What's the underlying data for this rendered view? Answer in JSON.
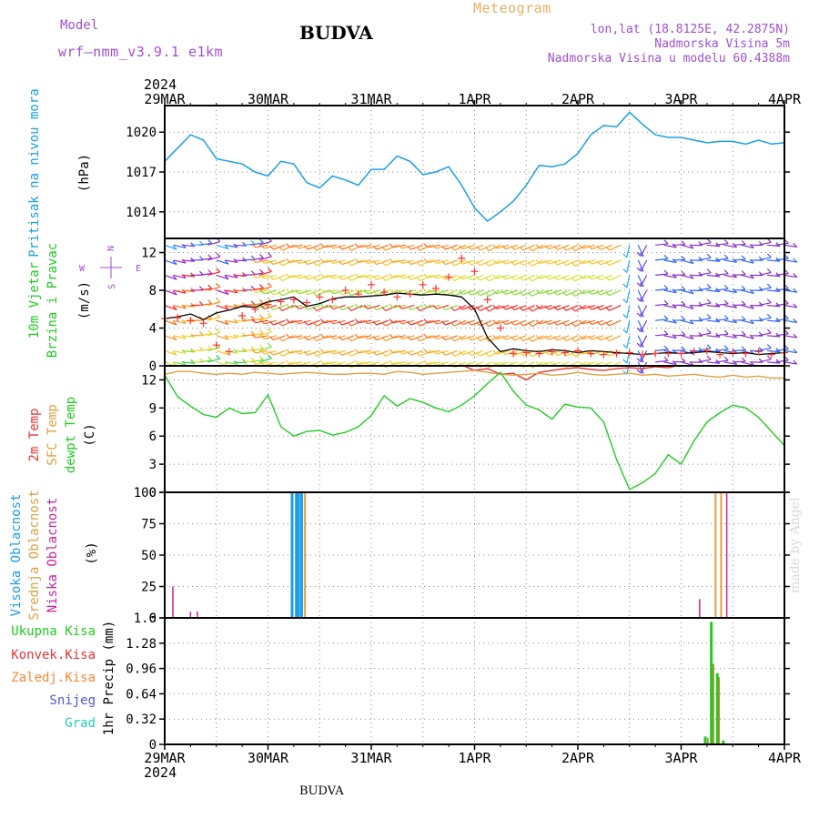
{
  "header": {
    "model_label": "Model",
    "model_name": "wrf—nmm_v3.9.1  e1km",
    "station": "BUDVA",
    "meteogram": "Meteogram",
    "lonlat": "lon,lat (18.8125E, 42.2875N)",
    "elevation": "Nadmorska Visina 5m",
    "model_elevation": "Nadmorska Visina u modelu 60.4388m",
    "footer_station": "BUDVA",
    "credit": "made by Angel"
  },
  "colors": {
    "pressure": "#1aa0e6",
    "temp2m": "#ee3333",
    "sfc_temp": "#e0a040",
    "dewpt": "#22cc22",
    "cloud_high": "#1a9ee6",
    "cloud_mid": "#e0a040",
    "cloud_low": "#cc2299",
    "precip_total": "#22cc22",
    "precip_conv": "#ee3333",
    "precip_frozen": "#ff8833",
    "snow": "#5555dd",
    "graupel": "#22ccbb",
    "model_text": "#a050d0",
    "meteogram_text": "#e8b060"
  },
  "chart_data": {
    "type": "meteogram",
    "time_axis": {
      "year": "2024",
      "ticks": [
        "29MAR",
        "30MAR",
        "31MAR",
        "1APR",
        "2APR",
        "3APR",
        "4APR"
      ],
      "start": "2024-03-29T00:00",
      "end": "2024-04-04T00:00",
      "step_hours": 3
    },
    "panels": [
      {
        "id": "pressure",
        "ylabel": "(hPa)",
        "series_label": "Pritisak na nivou mora",
        "yticks": [
          "1014",
          "1017",
          "1020"
        ],
        "ylim": [
          1012,
          1022
        ],
        "values": [
          1017.8,
          1018.8,
          1019.8,
          1019.4,
          1018.0,
          1017.8,
          1017.6,
          1017.0,
          1016.7,
          1017.8,
          1017.6,
          1016.2,
          1015.8,
          1016.7,
          1016.4,
          1016.0,
          1017.2,
          1017.2,
          1018.2,
          1017.8,
          1016.8,
          1017.0,
          1017.4,
          1016.0,
          1014.3,
          1013.3,
          1014.0,
          1014.8,
          1016.0,
          1017.5,
          1017.4,
          1017.6,
          1018.4,
          1019.8,
          1020.5,
          1020.4,
          1021.5,
          1020.6,
          1019.8,
          1019.6,
          1019.6,
          1019.4,
          1019.2,
          1019.3,
          1019.3,
          1019.1,
          1019.4,
          1019.1,
          1019.2
        ]
      },
      {
        "id": "wind",
        "ylabel": "(m/s)",
        "series_label_1": "10m Vjetar",
        "series_label_2": "Brzina i Pravac",
        "compass": {
          "n": "N",
          "s": "S",
          "e": "E",
          "w": "W"
        },
        "yticks": [
          "0",
          "4",
          "8",
          "12"
        ],
        "ylim": [
          0,
          13.5
        ],
        "speed": [
          5.0,
          5.2,
          5.5,
          4.9,
          5.6,
          5.9,
          6.3,
          6.2,
          6.8,
          7.0,
          7.3,
          6.3,
          6.6,
          7.1,
          7.3,
          7.3,
          7.4,
          7.5,
          7.7,
          7.6,
          7.5,
          7.6,
          7.5,
          7.3,
          6.0,
          3.0,
          1.5,
          1.8,
          1.6,
          1.5,
          1.7,
          1.6,
          1.4,
          1.6,
          1.5,
          1.4,
          1.3,
          1.2,
          1.3,
          1.4,
          1.3,
          1.4,
          1.5,
          1.4,
          1.3,
          1.4,
          1.2,
          1.3,
          1.4
        ],
        "gust": [
          5.0,
          5.1,
          4.8,
          4.5,
          2.2,
          1.5,
          5.3,
          6.0,
          6.5,
          6.8,
          7.0,
          6.7,
          7.3,
          7.0,
          8.0,
          7.6,
          8.6,
          7.8,
          7.3,
          7.6,
          8.6,
          8.2,
          9.4,
          11.4,
          10.0,
          7.0,
          4.0,
          1.3,
          1.4,
          1.3,
          1.5,
          1.4,
          1.6,
          1.3,
          1.2,
          1.3,
          1.4,
          1.2,
          1.3,
          1.3,
          1.3,
          1.5,
          1.6,
          1.2,
          1.4,
          1.3,
          1.5,
          1.2,
          1.4
        ]
      },
      {
        "id": "temperature",
        "ylabel": "(C)",
        "label_2m": "2m Temp",
        "label_sfc": "SFC Temp",
        "label_dew": "dewpt Temp",
        "yticks": [
          "0",
          "3",
          "6",
          "9",
          "12"
        ],
        "ylim": [
          0,
          13.5
        ],
        "temp2m": [
          13.6,
          13.6,
          13.6,
          13.6,
          13.7,
          13.6,
          13.7,
          13.6,
          13.7,
          13.6,
          13.8,
          13.7,
          13.6,
          13.7,
          13.6,
          13.7,
          13.6,
          13.7,
          13.7,
          13.6,
          13.7,
          13.6,
          13.7,
          13.6,
          13.0,
          13.2,
          12.6,
          12.7,
          12.0,
          12.8,
          13.0,
          13.2,
          13.3,
          13.1,
          13.0,
          13.2,
          13.3,
          13.2,
          13.4,
          13.3,
          13.6,
          13.7,
          13.6,
          13.8,
          13.7,
          13.6,
          13.7,
          13.6,
          13.7
        ],
        "sfc_temp": [
          12.6,
          12.9,
          12.9,
          12.7,
          12.6,
          12.7,
          12.6,
          12.8,
          12.7,
          12.6,
          12.7,
          12.8,
          12.7,
          12.6,
          12.6,
          12.7,
          12.7,
          12.6,
          12.9,
          12.8,
          12.6,
          12.7,
          12.8,
          12.9,
          13.0,
          12.8,
          12.6,
          12.5,
          12.6,
          12.7,
          12.5,
          12.6,
          12.8,
          12.6,
          12.5,
          12.6,
          12.7,
          12.5,
          12.6,
          12.4,
          12.5,
          12.6,
          12.4,
          12.3,
          12.5,
          12.3,
          12.4,
          12.2,
          12.2
        ],
        "dewpt": [
          12.5,
          10.2,
          9.2,
          8.3,
          8.0,
          9.0,
          8.4,
          8.5,
          10.4,
          7.0,
          6.0,
          6.5,
          6.6,
          6.1,
          6.4,
          7.0,
          8.2,
          10.3,
          9.2,
          10.0,
          9.6,
          9.0,
          8.6,
          9.3,
          10.3,
          11.6,
          12.8,
          10.8,
          9.3,
          8.8,
          7.8,
          9.4,
          9.1,
          9.0,
          7.5,
          3.5,
          0.3,
          1.0,
          2.0,
          4.0,
          3.0,
          5.5,
          7.5,
          8.5,
          9.3,
          9.0,
          8.0,
          6.5,
          5.0
        ]
      },
      {
        "id": "clouds",
        "ylabel": "(%)",
        "label_high": "Visoka Oblacnost",
        "label_mid": "Srednja Oblacnost",
        "label_low": "Niska Oblacnost",
        "yticks": [
          "0",
          "25",
          "50",
          "75",
          "100"
        ],
        "ylim": [
          0,
          100
        ],
        "high_bars": [
          {
            "t": 29.6,
            "v": 100
          },
          {
            "t": 30.6,
            "v": 100
          },
          {
            "t": 31.1,
            "v": 100
          },
          {
            "t": 31.8,
            "v": 100
          }
        ],
        "mid_bars": [
          {
            "t": 32.6,
            "v": 100
          },
          {
            "t": 128.0,
            "v": 100
          },
          {
            "t": 129.3,
            "v": 100
          }
        ],
        "low_bars": [
          {
            "t": 1.9,
            "v": 25
          },
          {
            "t": 6.0,
            "v": 5
          },
          {
            "t": 7.6,
            "v": 5
          },
          {
            "t": 124.3,
            "v": 15
          },
          {
            "t": 130.6,
            "v": 100
          }
        ]
      },
      {
        "id": "precip",
        "ylabel": "1hr Precip (mm)",
        "label_total": "Ukupna Kisa",
        "label_conv": "Konvek.Kisa",
        "label_frozen": "Zaledj.Kisa",
        "label_snow": "Snijeg",
        "label_graupel": "Grad",
        "yticks": [
          "0",
          "0.32",
          "0.64",
          "0.96",
          "1.28",
          "1.6"
        ],
        "ylim": [
          0,
          1.6
        ],
        "total_bars": [
          {
            "t": 125.6,
            "v": 0.1
          },
          {
            "t": 127.0,
            "v": 1.55
          },
          {
            "t": 128.4,
            "v": 0.9
          },
          {
            "t": 129.8,
            "v": 0.05
          }
        ],
        "conv_bars": [
          {
            "t": 126.2,
            "v": 0.08
          },
          {
            "t": 127.5,
            "v": 1.02
          },
          {
            "t": 128.8,
            "v": 0.85
          }
        ]
      }
    ]
  }
}
